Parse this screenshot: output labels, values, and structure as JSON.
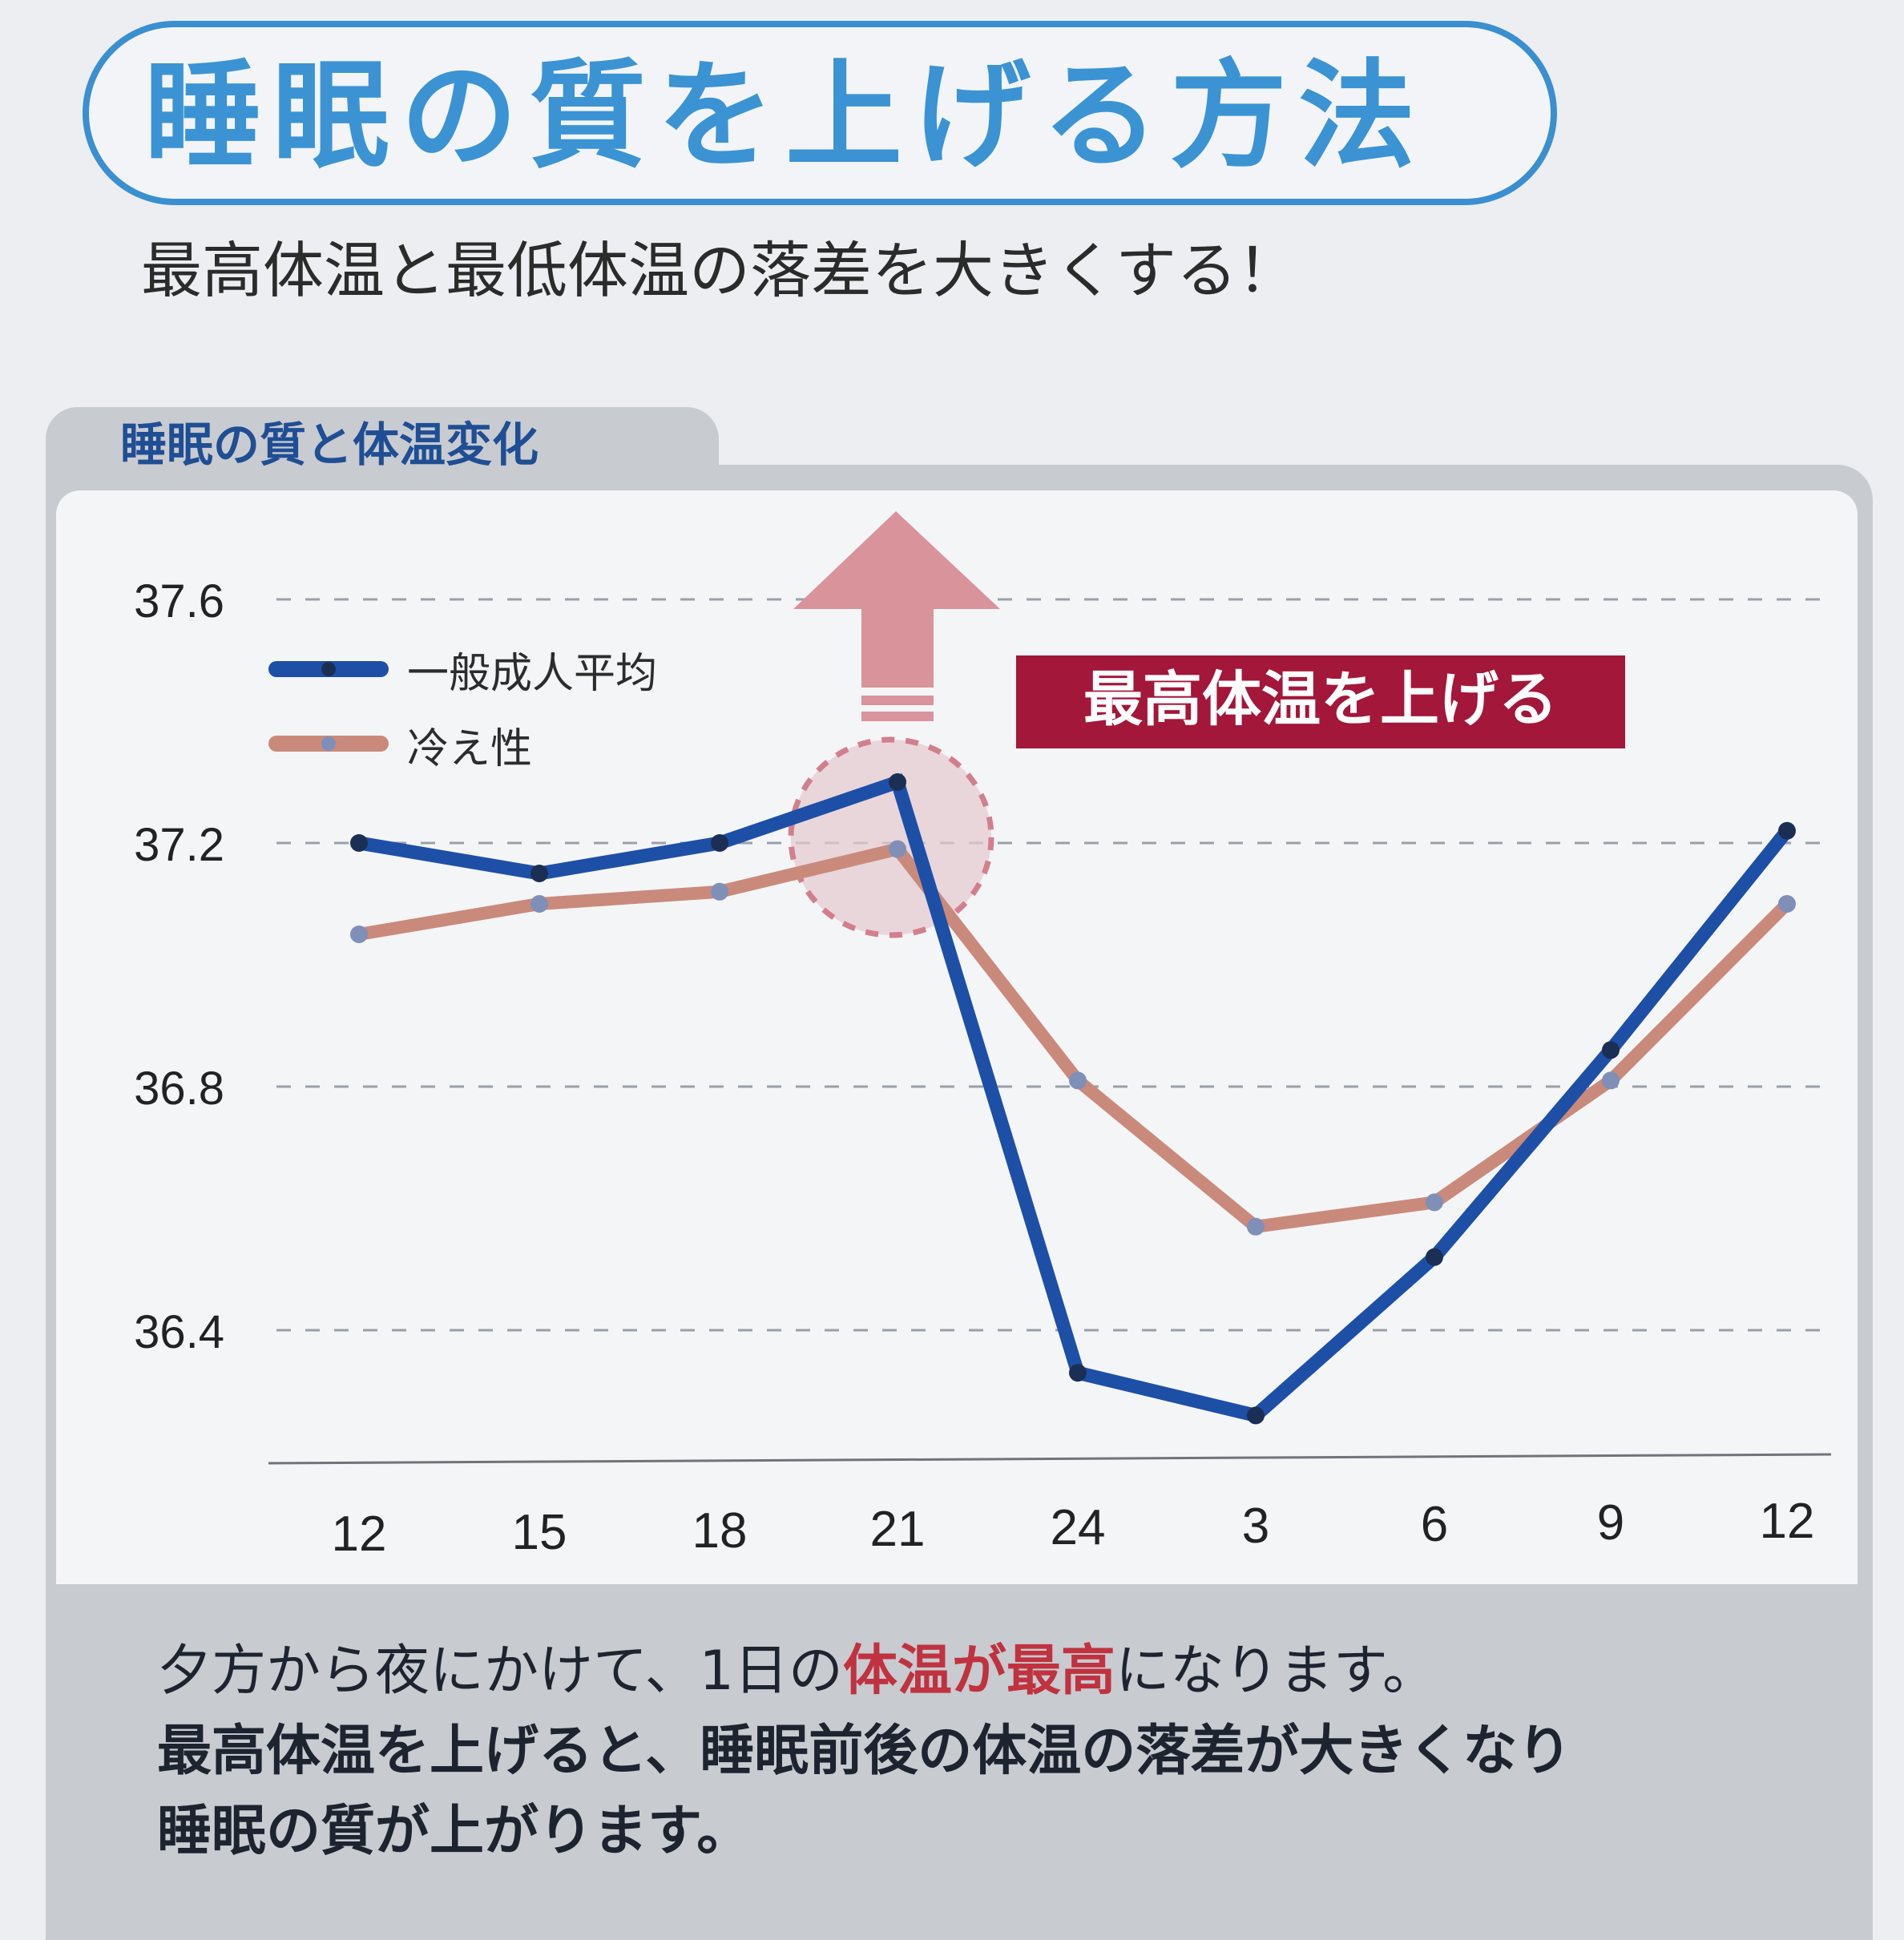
{
  "header": {
    "title": "睡眠の質を上げる方法",
    "subtitle": "最高体温と最低体温の落差を大きくする！"
  },
  "panel": {
    "label": "睡眠の質と体温変化"
  },
  "callout": {
    "label": "最高体温を上げる"
  },
  "chart_data": {
    "type": "line",
    "title": "睡眠の質と体温変化",
    "x": [
      "12",
      "15",
      "18",
      "21",
      "24",
      "3",
      "6",
      "9",
      "12"
    ],
    "ylim": [
      36.2,
      37.7
    ],
    "yticks": [
      "37.6",
      "37.2",
      "36.8",
      "36.4"
    ],
    "grid": true,
    "legend_position": "top-left",
    "series": [
      {
        "name": "一般成人平均",
        "color": "#1e4fa6",
        "values": [
          37.2,
          37.15,
          37.2,
          37.3,
          36.33,
          36.26,
          36.52,
          36.86,
          37.22
        ]
      },
      {
        "name": "冷え性",
        "color": "#c98a7c",
        "values": [
          37.05,
          37.1,
          37.12,
          37.19,
          36.81,
          36.57,
          36.61,
          36.81,
          37.1
        ]
      }
    ],
    "annotations": [
      "最高体温を上げる"
    ]
  },
  "footer": {
    "line1": [
      "夕方から夜にかけて、1日の",
      "体温が最高",
      "になります。"
    ],
    "line2": "最高体温を上げると、睡眠前後の体温の落差が大きくなり",
    "line3": "睡眠の質が上がります。"
  },
  "colors": {
    "title_blue": "#3b93d3",
    "callout_red": "#a3173a",
    "arrow_pink": "#d9939a",
    "highlight_red": "#c0323f"
  }
}
